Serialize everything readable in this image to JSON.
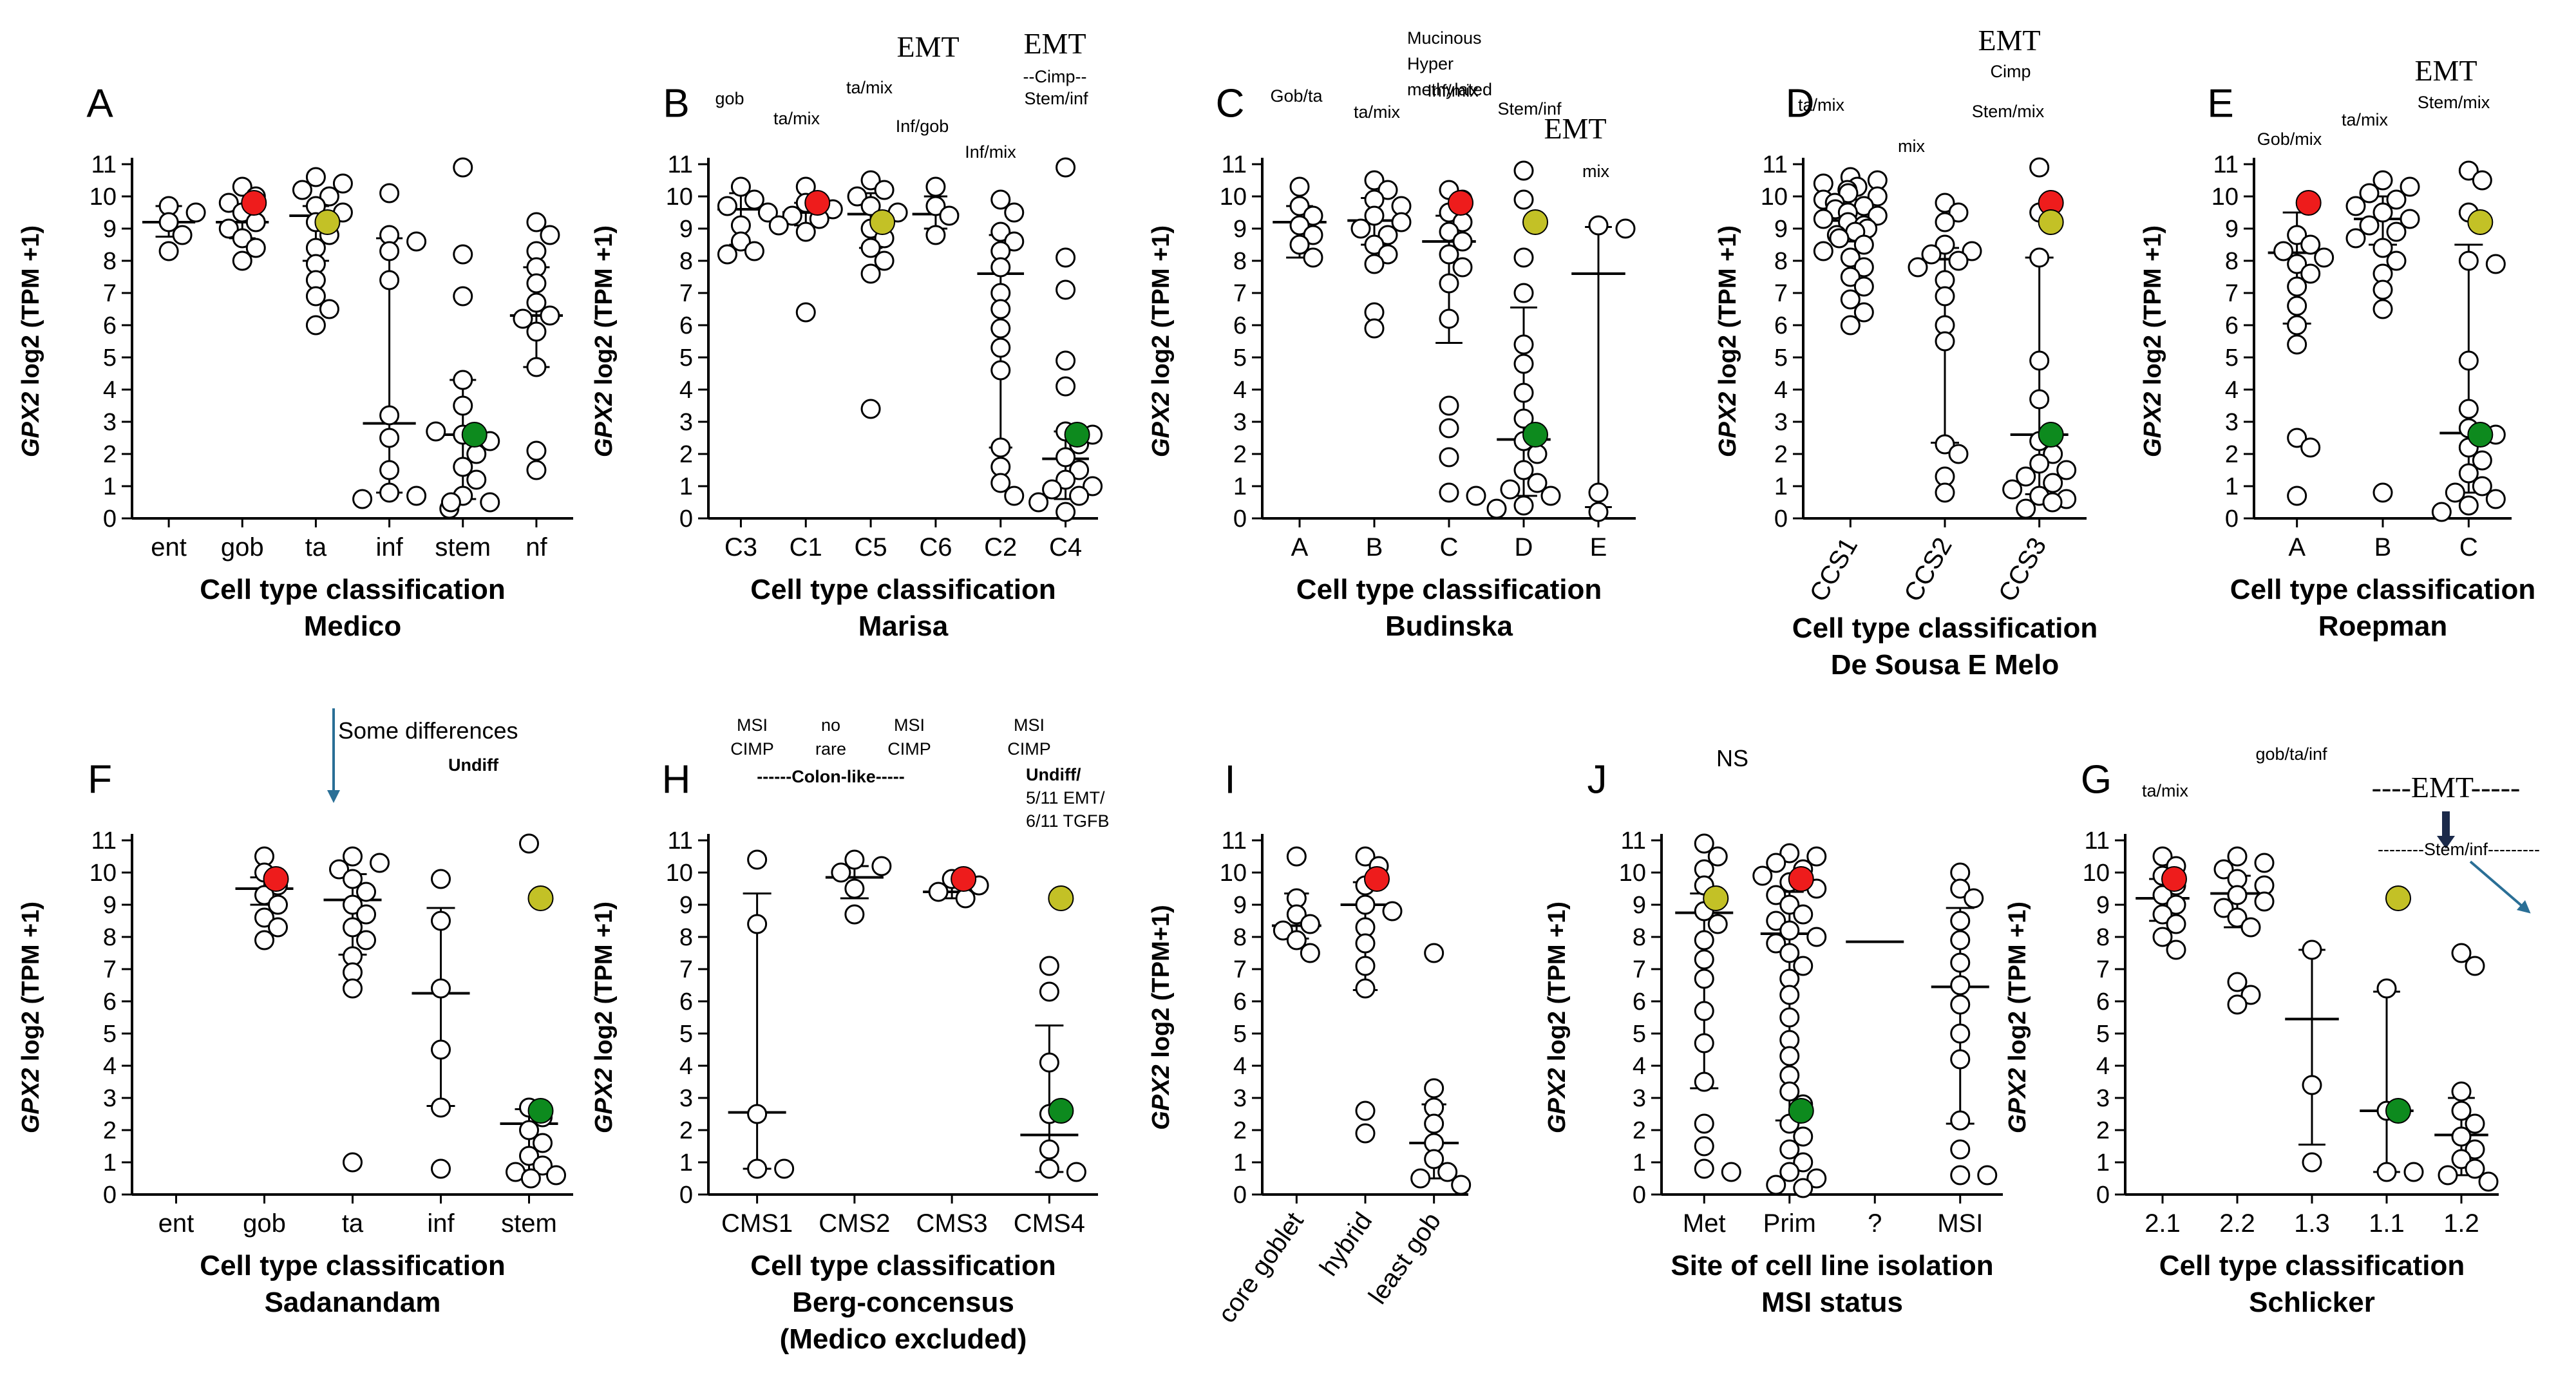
{
  "figure": {
    "y_label_ital": "GPX2",
    "y_label_rest": " log2 (TPM +1)",
    "y_label_alt_rest": " log2 (TPM+1)"
  },
  "colors": {
    "red": "#ee1c1c",
    "yellow": "#c3c126",
    "green": "#0d8a1e",
    "arrow": "#2a6f96"
  },
  "chart_data": [
    {
      "type": "scatter",
      "panel": "A",
      "ylim": [
        0,
        11
      ],
      "ylabel_variant": "a",
      "xlabel": "Cell type classification",
      "subtitle": "Medico",
      "categories": [
        "ent",
        "gob",
        "ta",
        "inf",
        "stem",
        "nf"
      ],
      "values": [
        [
          9.7,
          9.5,
          9.2,
          8.8,
          8.3
        ],
        [
          10.3,
          10.0,
          9.8,
          9.5,
          9.2,
          9.0,
          8.7,
          8.4,
          8.0
        ],
        [
          10.6,
          10.4,
          10.2,
          10.0,
          9.7,
          9.5,
          9.2,
          8.8,
          8.4,
          7.9,
          7.4,
          6.9,
          6.5,
          6.0
        ],
        [
          10.1,
          8.8,
          8.6,
          8.3,
          7.4,
          3.2,
          2.5,
          1.5,
          0.8,
          0.7,
          0.6
        ],
        [
          10.9,
          8.2,
          6.9,
          4.3,
          3.5,
          2.6,
          2.4,
          1.6,
          1.2,
          0.7,
          0.5,
          0.3,
          0.5,
          2.0,
          2.7
        ],
        [
          9.2,
          8.8,
          8.3,
          7.8,
          7.3,
          6.7,
          6.3,
          6.2,
          5.8,
          4.7,
          2.1,
          1.5
        ]
      ],
      "med": [
        9.2,
        9.2,
        9.4,
        2.95,
        2.6,
        6.3
      ],
      "q1": [
        8.75,
        8.7,
        8.0,
        0.8,
        0.6,
        4.7
      ],
      "q3": [
        9.7,
        9.7,
        9.7,
        8.7,
        4.3,
        7.8
      ],
      "colored": [
        {
          "cat": 1,
          "y": 9.8,
          "color": "red"
        },
        {
          "cat": 2,
          "y": 9.2,
          "color": "yellow"
        },
        {
          "cat": 4,
          "y": 2.6,
          "color": "green"
        }
      ],
      "annotations": []
    },
    {
      "type": "scatter",
      "panel": "B",
      "ylim": [
        0,
        11
      ],
      "ylabel_variant": "a",
      "xlabel": "Cell type classification",
      "subtitle": "Marisa",
      "categories": [
        "C3",
        "C1",
        "C5",
        "C6",
        "C2",
        "C4"
      ],
      "values": [
        [
          10.3,
          9.9,
          9.7,
          9.5,
          9.1,
          8.6,
          8.3,
          8.2
        ],
        [
          10.3,
          9.8,
          9.6,
          9.4,
          9.3,
          9.1,
          8.9,
          6.4
        ],
        [
          10.5,
          10.2,
          10.0,
          9.7,
          9.5,
          9.0,
          8.7,
          8.4,
          8.0,
          7.6,
          3.4
        ],
        [
          10.3,
          9.7,
          9.4,
          8.8
        ],
        [
          9.9,
          9.5,
          8.9,
          8.6,
          8.3,
          7.8,
          7.0,
          6.5,
          5.9,
          5.3,
          4.6,
          2.2,
          1.6,
          1.1,
          0.7
        ],
        [
          10.9,
          8.1,
          7.1,
          4.9,
          4.1,
          2.7,
          2.3,
          1.9,
          1.5,
          1.2,
          1.0,
          0.9,
          0.7,
          0.5,
          0.2,
          2.6
        ]
      ],
      "med": [
        9.6,
        9.5,
        9.45,
        9.45,
        7.6,
        1.85
      ],
      "q1": [
        8.5,
        9.1,
        8.4,
        9.0,
        2.2,
        0.6
      ],
      "q3": [
        10.1,
        9.8,
        10.1,
        10.0,
        8.8,
        2.7
      ],
      "colored": [
        {
          "cat": 1,
          "y": 9.8,
          "color": "red"
        },
        {
          "cat": 2,
          "y": 9.2,
          "color": "yellow"
        },
        {
          "cat": 5,
          "y": 2.6,
          "color": "green"
        }
      ],
      "annotations": [
        "gob",
        "ta/mix",
        "ta/mix",
        "Inf/gob",
        "Inf/mix",
        "EMT",
        "EMT",
        "--Cimp--",
        "Stem/inf"
      ]
    },
    {
      "type": "scatter",
      "panel": "C",
      "ylim": [
        0,
        11
      ],
      "ylabel_variant": "a",
      "xlabel": "Cell type classification",
      "subtitle": "Budinska",
      "categories": [
        "A",
        "B",
        "C",
        "D",
        "E"
      ],
      "values": [
        [
          10.3,
          9.7,
          9.4,
          9.1,
          8.8,
          8.5,
          8.1
        ],
        [
          10.5,
          10.2,
          9.9,
          9.7,
          9.4,
          9.2,
          9.0,
          8.8,
          8.5,
          8.2,
          7.9,
          6.4,
          5.9
        ],
        [
          10.2,
          9.9,
          9.5,
          9.2,
          8.9,
          8.6,
          8.2,
          7.8,
          7.3,
          6.2,
          3.5,
          2.8,
          1.9,
          0.8,
          0.7
        ],
        [
          10.8,
          9.9,
          8.1,
          7.0,
          5.4,
          4.8,
          3.9,
          3.1,
          2.4,
          2.0,
          1.5,
          1.1,
          0.9,
          0.7,
          0.4,
          0.3
        ],
        [
          9.1,
          9.0,
          0.8,
          0.2
        ]
      ],
      "med": [
        9.2,
        9.25,
        8.6,
        2.45,
        7.6
      ],
      "q1": [
        8.1,
        8.5,
        5.45,
        0.7,
        0.35
      ],
      "q3": [
        9.7,
        9.95,
        9.4,
        6.55,
        9.05
      ],
      "colored": [
        {
          "cat": 2,
          "y": 9.8,
          "color": "red"
        },
        {
          "cat": 3,
          "y": 9.2,
          "color": "yellow"
        },
        {
          "cat": 3,
          "y": 2.6,
          "color": "green"
        }
      ],
      "annotations": [
        "Gob/ta",
        "ta/mix",
        "Mucinous",
        "Hyper",
        "methylated",
        "Inf/mix",
        "Stem/inf",
        "EMT",
        "mix"
      ]
    },
    {
      "type": "scatter",
      "panel": "D",
      "ylim": [
        0,
        11
      ],
      "ylabel_variant": "a",
      "xlabel": "Cell type classification",
      "subtitle": "De Sousa E Melo",
      "categories": [
        "CCS1",
        "CCS2",
        "CCS3"
      ],
      "values": [
        [
          10.6,
          10.5,
          10.4,
          10.3,
          10.2,
          10.1,
          10.0,
          9.9,
          9.8,
          9.7,
          9.6,
          9.5,
          9.4,
          9.3,
          9.2,
          9.1,
          9.0,
          8.9,
          8.8,
          8.7,
          8.5,
          8.3,
          8.1,
          7.8,
          7.5,
          7.2,
          6.8,
          6.4,
          6.0
        ],
        [
          9.8,
          9.5,
          9.2,
          8.5,
          8.3,
          8.2,
          8.0,
          7.8,
          7.4,
          6.9,
          6.0,
          5.5,
          2.3,
          2.0,
          1.3,
          0.8
        ],
        [
          10.9,
          9.5,
          8.1,
          4.9,
          3.7,
          2.4,
          2.0,
          1.7,
          1.5,
          1.3,
          1.1,
          0.9,
          0.7,
          0.6,
          0.5,
          0.3
        ]
      ],
      "med": [
        9.25,
        8.05,
        2.6
      ],
      "q1": [
        8.6,
        2.35,
        0.75
      ],
      "q3": [
        9.9,
        8.4,
        8.1
      ],
      "colored": [
        {
          "cat": 2,
          "y": 9.8,
          "color": "red"
        },
        {
          "cat": 2,
          "y": 9.2,
          "color": "yellow"
        },
        {
          "cat": 2,
          "y": 2.6,
          "color": "green"
        }
      ],
      "annotations": [
        "ta/mix",
        "mix",
        "Stem/mix",
        "EMT",
        "Cimp"
      ]
    },
    {
      "type": "scatter",
      "panel": "E",
      "ylim": [
        0,
        11
      ],
      "ylabel_variant": "a",
      "xlabel": "Cell type classification",
      "subtitle": "Roepman",
      "categories": [
        "A",
        "B",
        "C"
      ],
      "values": [
        [
          8.8,
          8.5,
          8.3,
          8.1,
          7.9,
          7.6,
          7.2,
          6.6,
          6.0,
          5.4,
          2.5,
          2.2,
          0.7
        ],
        [
          10.5,
          10.3,
          10.1,
          9.9,
          9.7,
          9.5,
          9.3,
          9.1,
          8.9,
          8.7,
          8.4,
          8.0,
          7.6,
          7.1,
          6.5,
          0.8
        ],
        [
          10.8,
          10.5,
          9.5,
          9.2,
          8.0,
          7.9,
          4.9,
          3.4,
          2.8,
          2.6,
          2.2,
          1.8,
          1.4,
          1.0,
          0.8,
          0.6,
          0.4,
          0.2
        ]
      ],
      "med": [
        8.25,
        9.3,
        2.65
      ],
      "q1": [
        6.05,
        8.5,
        0.8
      ],
      "q3": [
        9.5,
        10.0,
        8.5
      ],
      "colored": [
        {
          "cat": 0,
          "y": 9.8,
          "color": "red"
        },
        {
          "cat": 2,
          "y": 9.2,
          "color": "yellow"
        },
        {
          "cat": 2,
          "y": 2.6,
          "color": "green"
        }
      ],
      "annotations": [
        "Gob/mix",
        "ta/mix",
        "Stem/mix",
        "EMT"
      ]
    },
    {
      "type": "scatter",
      "panel": "F",
      "ylim": [
        0,
        11
      ],
      "ylabel_variant": "a",
      "xlabel": "Cell type classification",
      "subtitle": "Sadanandam",
      "categories": [
        "ent",
        "gob",
        "ta",
        "inf",
        "stem"
      ],
      "values": [
        [],
        [
          10.5,
          10.0,
          9.6,
          9.3,
          9.0,
          8.6,
          8.3,
          7.9
        ],
        [
          10.5,
          10.3,
          10.1,
          9.8,
          9.4,
          9.0,
          8.7,
          8.3,
          7.9,
          7.4,
          6.9,
          6.4,
          1.0
        ],
        [
          9.8,
          8.5,
          6.4,
          4.5,
          2.7,
          0.8
        ],
        [
          10.9,
          2.7,
          2.4,
          2.0,
          1.6,
          1.2,
          0.9,
          0.7,
          0.6,
          0.5
        ]
      ],
      "med": [
        null,
        9.5,
        9.15,
        6.25,
        2.2
      ],
      "q1": [
        null,
        9.0,
        7.45,
        2.75,
        0.75
      ],
      "q3": [
        null,
        9.85,
        9.95,
        8.9,
        2.65
      ],
      "colored": [
        {
          "cat": 1,
          "y": 9.8,
          "color": "red"
        },
        {
          "cat": 4,
          "y": 9.2,
          "color": "yellow"
        },
        {
          "cat": 4,
          "y": 2.6,
          "color": "green"
        }
      ],
      "annotations": [
        "Some differences",
        "Undiff"
      ]
    },
    {
      "type": "scatter",
      "panel": "H",
      "ylim": [
        0,
        11
      ],
      "ylabel_variant": "a",
      "xlabel": "Cell type classification",
      "subtitle": "Berg-concensus",
      "subtitle2": "(Medico excluded)",
      "categories": [
        "CMS1",
        "CMS2",
        "CMS3",
        "CMS4"
      ],
      "values": [
        [
          10.4,
          8.4,
          2.5,
          0.8,
          0.8
        ],
        [
          10.4,
          10.2,
          10.0,
          9.5,
          8.7
        ],
        [
          9.8,
          9.6,
          9.4,
          9.2
        ],
        [
          7.1,
          6.3,
          4.1,
          2.5,
          1.4,
          0.8,
          0.7
        ]
      ],
      "med": [
        2.55,
        9.85,
        9.4,
        1.85
      ],
      "q1": [
        0.8,
        9.2,
        9.2,
        0.7
      ],
      "q3": [
        9.35,
        10.2,
        9.6,
        5.25
      ],
      "colored": [
        {
          "cat": 2,
          "y": 9.8,
          "color": "red"
        },
        {
          "cat": 3,
          "y": 9.2,
          "color": "yellow"
        },
        {
          "cat": 3,
          "y": 2.6,
          "color": "green"
        }
      ],
      "annotations": [
        "MSI",
        "CIMP",
        "no",
        "rare",
        "MSI",
        "CIMP",
        "MSI",
        "CIMP",
        "------Colon-like-----",
        "Undiff/",
        "5/11 EMT/",
        "6/11 TGFB"
      ]
    },
    {
      "type": "scatter",
      "panel": "I",
      "ylim": [
        0,
        11
      ],
      "ylabel_variant": "b",
      "xlabel": "",
      "subtitle": "",
      "categories": [
        "core goblet",
        "hybrid",
        "least gob"
      ],
      "values": [
        [
          10.5,
          9.2,
          8.7,
          8.4,
          8.2,
          7.9,
          7.5
        ],
        [
          10.5,
          10.2,
          9.6,
          9.0,
          8.8,
          8.3,
          7.8,
          7.1,
          6.4,
          2.6,
          1.9
        ],
        [
          7.5,
          3.3,
          2.7,
          2.2,
          1.6,
          1.1,
          0.7,
          0.5,
          0.3
        ]
      ],
      "med": [
        8.35,
        9.0,
        1.6
      ],
      "q1": [
        7.95,
        6.35,
        0.5
      ],
      "q3": [
        9.35,
        9.7,
        2.8
      ],
      "colored": [
        {
          "cat": 1,
          "y": 9.8,
          "color": "red"
        }
      ],
      "annotations": []
    },
    {
      "type": "scatter",
      "panel": "J",
      "ylim": [
        0,
        11
      ],
      "ylabel_variant": "a",
      "xlabel": "Site of cell line isolation",
      "subtitle": "MSI status",
      "categories": [
        "Met",
        "Prim",
        "?",
        "MSI"
      ],
      "values": [
        [
          10.9,
          10.5,
          10.1,
          9.6,
          9.2,
          8.8,
          8.4,
          7.9,
          7.3,
          6.7,
          5.7,
          4.7,
          3.5,
          2.2,
          1.5,
          0.8,
          0.7
        ],
        [
          10.6,
          10.5,
          10.3,
          10.1,
          9.9,
          9.7,
          9.5,
          9.3,
          9.0,
          8.7,
          8.5,
          8.2,
          8.0,
          7.8,
          7.5,
          7.1,
          6.7,
          6.2,
          5.5,
          4.8,
          4.3,
          3.7,
          3.2,
          2.8,
          2.2,
          1.8,
          1.4,
          1.0,
          0.7,
          0.5,
          0.3,
          0.2
        ],
        [],
        [
          10.0,
          9.5,
          9.2,
          8.5,
          7.9,
          7.2,
          6.5,
          5.9,
          5.0,
          4.2,
          2.3,
          1.4,
          0.6,
          0.6
        ]
      ],
      "med": [
        8.75,
        8.1,
        7.85,
        6.45
      ],
      "q1": [
        3.3,
        2.3,
        7.85,
        2.2
      ],
      "q3": [
        9.35,
        9.4,
        7.85,
        8.9
      ],
      "colored": [
        {
          "cat": 1,
          "y": 9.8,
          "color": "red"
        },
        {
          "cat": 0,
          "y": 9.2,
          "color": "yellow"
        },
        {
          "cat": 1,
          "y": 2.6,
          "color": "green"
        }
      ],
      "annotations": [
        "NS"
      ]
    },
    {
      "type": "scatter",
      "panel": "G",
      "ylim": [
        0,
        11
      ],
      "ylabel_variant": "a",
      "xlabel": "Cell type classification",
      "subtitle": "Schlicker",
      "categories": [
        "2.1",
        "2.2",
        "1.3",
        "1.1",
        "1.2"
      ],
      "values": [
        [
          10.5,
          10.2,
          9.9,
          9.6,
          9.3,
          9.0,
          8.7,
          8.4,
          8.0,
          7.6
        ],
        [
          10.5,
          10.3,
          10.1,
          9.8,
          9.6,
          9.3,
          9.1,
          8.9,
          8.6,
          8.3,
          6.6,
          6.2,
          5.9
        ],
        [
          7.6,
          3.4,
          1.0
        ],
        [
          6.4,
          2.6,
          0.7,
          0.7
        ],
        [
          7.5,
          7.1,
          3.2,
          2.6,
          2.2,
          1.8,
          1.4,
          1.1,
          0.8,
          0.6,
          0.4
        ]
      ],
      "med": [
        9.2,
        9.35,
        5.45,
        2.6,
        1.85
      ],
      "q1": [
        8.5,
        8.3,
        1.55,
        0.7,
        0.6
      ],
      "q3": [
        9.8,
        9.9,
        7.6,
        6.3,
        3.0
      ],
      "colored": [
        {
          "cat": 0,
          "y": 9.8,
          "color": "red"
        },
        {
          "cat": 3,
          "y": 9.2,
          "color": "yellow"
        },
        {
          "cat": 3,
          "y": 2.6,
          "color": "green"
        }
      ],
      "annotations": [
        "ta/mix",
        "gob/ta/inf",
        "----EMT-----",
        "--------Stem/inf---------"
      ]
    }
  ]
}
